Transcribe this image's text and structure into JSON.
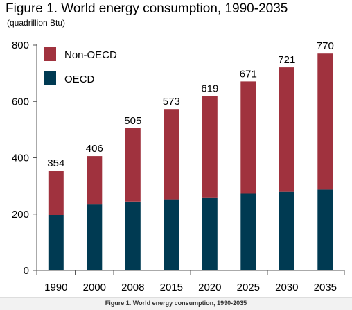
{
  "chart_data": {
    "type": "bar",
    "stacked": true,
    "title": "Figure 1. World energy consumption, 1990-2035",
    "subtitle": "(quadrillion Btu)",
    "categories": [
      "1990",
      "2000",
      "2008",
      "2015",
      "2020",
      "2025",
      "2030",
      "2035"
    ],
    "series": [
      {
        "name": "OECD",
        "color": "#003a52",
        "values": [
          197,
          236,
          244,
          252,
          259,
          272,
          279,
          287
        ]
      },
      {
        "name": "Non-OECD",
        "color": "#a0323e",
        "values": [
          157,
          170,
          261,
          321,
          360,
          399,
          442,
          483
        ]
      }
    ],
    "totals": [
      354,
      406,
      505,
      573,
      619,
      671,
      721,
      770
    ],
    "ylim": [
      0,
      800
    ],
    "yticks": [
      0,
      200,
      400,
      600,
      800
    ],
    "legend_position": "top-left",
    "grid": false
  },
  "caption": "Figure 1. World energy consumption, 1990-2035"
}
